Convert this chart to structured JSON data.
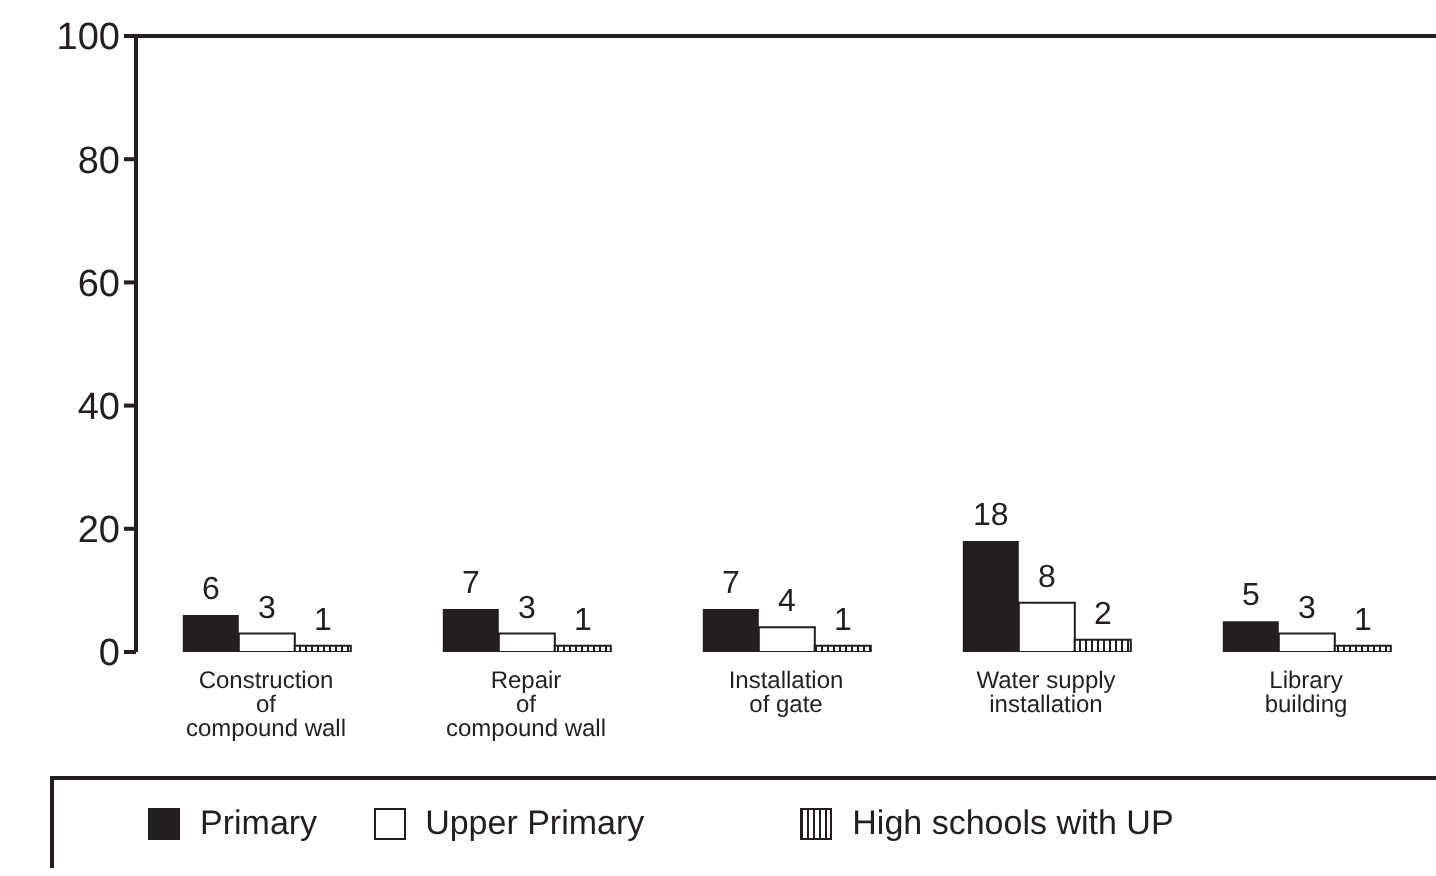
{
  "chart_data": {
    "type": "bar",
    "categories": [
      "Construction\nof\ncompound wall",
      "Repair\nof\ncompound wall",
      "Installation\nof gate",
      "Water supply\ninstallation",
      "Library\nbuilding"
    ],
    "series": [
      {
        "name": "Primary",
        "color": "#231f20",
        "values": [
          6,
          7,
          7,
          18,
          5
        ]
      },
      {
        "name": "Upper Primary",
        "color": "#ffffff",
        "values": [
          3,
          3,
          4,
          8,
          3
        ]
      },
      {
        "name": "High schools with UP",
        "color": "#231f20",
        "values": [
          1,
          1,
          1,
          2,
          1
        ]
      }
    ],
    "ylim": [
      0,
      100
    ],
    "yticks": [
      0,
      20,
      40,
      60,
      80,
      100
    ],
    "grid": false,
    "legend": "bottom",
    "data_labels": true
  }
}
